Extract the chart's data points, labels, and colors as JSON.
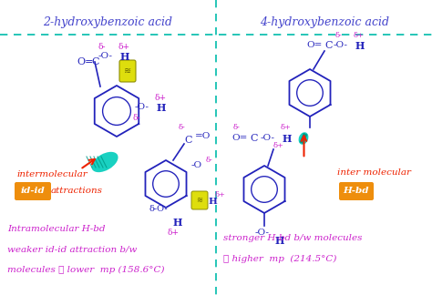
{
  "title_left": "2-hydroxybenzoic acid",
  "title_right": "4-hydroxybenzoic acid",
  "title_color": "#4444cc",
  "divider_color": "#00bbaa",
  "bg_color": "#ffffff",
  "molecule_color": "#2222bb",
  "delta_color": "#cc22cc",
  "text_color": "#cc22cc",
  "red_color": "#ee2200",
  "orange_color": "#ee8800",
  "yellow_color": "#dddd00",
  "cyan_color": "#00ccbb",
  "text_left": [
    "Intramolecular H-bd",
    "weaker id-id attraction b/w",
    "molecules ∴ lower  mp (158.6°C)"
  ],
  "text_right": [
    "stronger H-bd b/w molecules",
    "∴ higher  mp  (214.5°C)"
  ]
}
